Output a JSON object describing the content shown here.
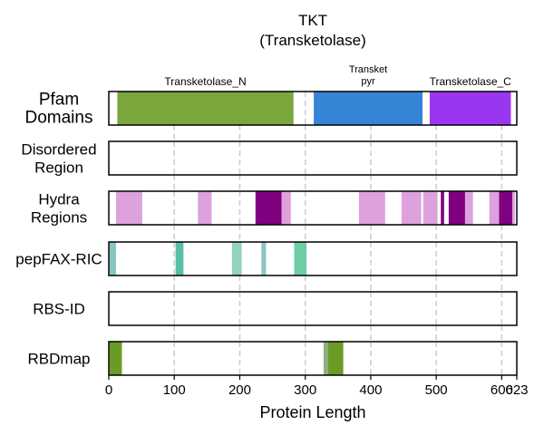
{
  "chart_data": {
    "type": "track",
    "title": "TKT",
    "subtitle": "(Transketolase)",
    "xlabel": "Protein Length",
    "xlim": [
      0,
      623
    ],
    "xticks": [
      0,
      100,
      200,
      300,
      400,
      500,
      600,
      623
    ],
    "grid_x": [
      100,
      200,
      300,
      400,
      500,
      600
    ],
    "tracks": [
      {
        "label_lines": [
          "Pfam",
          "Domains"
        ],
        "segments": [
          {
            "start": 13,
            "end": 282,
            "color": "#7aa63c",
            "label": [
              "Transketolase_N"
            ]
          },
          {
            "start": 313,
            "end": 479,
            "color": "#3584d6",
            "label": [
              "Transket",
              "pyr"
            ]
          },
          {
            "start": 490,
            "end": 614,
            "color": "#9b36f0",
            "label": [
              "Transketolase_C"
            ]
          }
        ]
      },
      {
        "label_lines": [
          "Disordered",
          "Region"
        ],
        "segments": []
      },
      {
        "label_lines": [
          "Hydra",
          "Regions"
        ],
        "segments": [
          {
            "start": 11,
            "end": 51,
            "color": "#dda1dd"
          },
          {
            "start": 136,
            "end": 157,
            "color": "#dda1dd"
          },
          {
            "start": 224,
            "end": 264,
            "color": "#800080"
          },
          {
            "start": 264,
            "end": 278,
            "color": "#dda1dd"
          },
          {
            "start": 382,
            "end": 422,
            "color": "#dda1dd"
          },
          {
            "start": 447,
            "end": 477,
            "color": "#dda1dd"
          },
          {
            "start": 480,
            "end": 502,
            "color": "#dda1dd"
          },
          {
            "start": 507,
            "end": 512,
            "color": "#800080"
          },
          {
            "start": 519,
            "end": 544,
            "color": "#800080"
          },
          {
            "start": 544,
            "end": 556,
            "color": "#dda1dd"
          },
          {
            "start": 581,
            "end": 596,
            "color": "#dda1dd"
          },
          {
            "start": 596,
            "end": 616,
            "color": "#800080"
          },
          {
            "start": 616,
            "end": 620,
            "color": "#dda1dd"
          }
        ]
      },
      {
        "label_lines": [
          "pepFAX-RIC"
        ],
        "segments": [
          {
            "start": 1,
            "end": 11,
            "color": "#88c6c0"
          },
          {
            "start": 102,
            "end": 114,
            "color": "#56bfa5"
          },
          {
            "start": 188,
            "end": 203,
            "color": "#92d4bd"
          },
          {
            "start": 233,
            "end": 240,
            "color": "#88c6c0"
          },
          {
            "start": 283,
            "end": 302,
            "color": "#6fcca5"
          }
        ]
      },
      {
        "label_lines": [
          "RBS-ID"
        ],
        "segments": []
      },
      {
        "label_lines": [
          "RBDmap"
        ],
        "segments": [
          {
            "start": 1,
            "end": 20,
            "color": "#6b9a26"
          },
          {
            "start": 328,
            "end": 335,
            "color": "#8caf81"
          },
          {
            "start": 335,
            "end": 358,
            "color": "#6b9a26"
          }
        ]
      }
    ]
  }
}
